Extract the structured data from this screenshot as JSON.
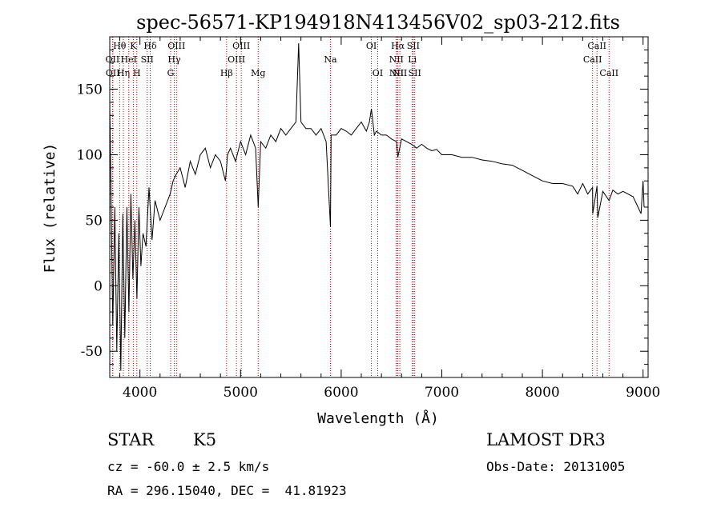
{
  "chart_data": {
    "type": "line",
    "title": "spec-56571-KP194918N413456V02_sp03-212.fits",
    "xlabel": "Wavelength (Å)",
    "ylabel": "Flux (relative)",
    "xlim": [
      3700,
      9050
    ],
    "ylim": [
      -70,
      190
    ],
    "xticks": [
      4000,
      5000,
      6000,
      7000,
      8000,
      9000
    ],
    "yticks": [
      -50,
      0,
      50,
      100,
      150
    ],
    "grid": false,
    "series": [
      {
        "name": "spectrum",
        "x": [
          3700,
          3730,
          3750,
          3770,
          3790,
          3810,
          3830,
          3850,
          3870,
          3890,
          3910,
          3930,
          3950,
          3970,
          3990,
          4010,
          4030,
          4060,
          4090,
          4120,
          4150,
          4200,
          4250,
          4300,
          4330,
          4360,
          4400,
          4450,
          4500,
          4550,
          4600,
          4650,
          4700,
          4750,
          4800,
          4850,
          4861,
          4870,
          4900,
          4950,
          5000,
          5050,
          5100,
          5150,
          5175,
          5200,
          5250,
          5300,
          5350,
          5400,
          5450,
          5500,
          5550,
          5577,
          5600,
          5650,
          5700,
          5750,
          5800,
          5850,
          5893,
          5900,
          5950,
          6000,
          6050,
          6100,
          6150,
          6200,
          6250,
          6280,
          6300,
          6330,
          6350,
          6400,
          6450,
          6500,
          6550,
          6563,
          6600,
          6650,
          6700,
          6750,
          6800,
          6850,
          6900,
          6950,
          7000,
          7100,
          7200,
          7300,
          7400,
          7500,
          7600,
          7700,
          7800,
          7900,
          8000,
          8100,
          8200,
          8300,
          8350,
          8400,
          8450,
          8498,
          8500,
          8542,
          8550,
          8600,
          8662,
          8700,
          8750,
          8800,
          8850,
          8900,
          8950,
          8980,
          9000,
          9010
        ],
        "values": [
          140,
          -30,
          60,
          -50,
          40,
          -65,
          55,
          -40,
          60,
          -20,
          70,
          5,
          50,
          -10,
          60,
          15,
          40,
          30,
          75,
          35,
          65,
          50,
          60,
          70,
          80,
          85,
          90,
          75,
          95,
          85,
          100,
          105,
          90,
          100,
          95,
          80,
          90,
          100,
          105,
          95,
          110,
          100,
          115,
          105,
          60,
          110,
          105,
          115,
          110,
          120,
          115,
          120,
          125,
          185,
          125,
          120,
          120,
          115,
          120,
          110,
          45,
          115,
          115,
          120,
          118,
          115,
          120,
          125,
          118,
          125,
          135,
          115,
          118,
          115,
          115,
          112,
          110,
          98,
          112,
          110,
          108,
          105,
          108,
          105,
          103,
          104,
          100,
          100,
          98,
          98,
          96,
          95,
          93,
          92,
          88,
          84,
          80,
          78,
          78,
          76,
          70,
          78,
          70,
          75,
          55,
          76,
          52,
          72,
          65,
          73,
          70,
          72,
          70,
          68,
          60,
          55,
          80,
          60
        ]
      }
    ],
    "lines": [
      {
        "name": "OII",
        "wavelength": 3727,
        "row": 2
      },
      {
        "name": "OII",
        "wavelength": 3730,
        "row": 3
      },
      {
        "name": "Hθ",
        "wavelength": 3798,
        "row": 1
      },
      {
        "name": "Hη",
        "wavelength": 3835,
        "row": 3
      },
      {
        "name": "HeI",
        "wavelength": 3889,
        "row": 2
      },
      {
        "name": "K",
        "wavelength": 3934,
        "row": 1
      },
      {
        "name": "H",
        "wavelength": 3969,
        "row": 3
      },
      {
        "name": "SII",
        "wavelength": 4072,
        "row": 2
      },
      {
        "name": "Hδ",
        "wavelength": 4102,
        "row": 1
      },
      {
        "name": "G",
        "wavelength": 4305,
        "row": 3
      },
      {
        "name": "Hγ",
        "wavelength": 4341,
        "row": 2
      },
      {
        "name": "OIII",
        "wavelength": 4363,
        "row": 1
      },
      {
        "name": "Hβ",
        "wavelength": 4861,
        "row": 3
      },
      {
        "name": "OIII",
        "wavelength": 4959,
        "row": 2
      },
      {
        "name": "OIII",
        "wavelength": 5007,
        "row": 1
      },
      {
        "name": "Mg",
        "wavelength": 5175,
        "row": 3
      },
      {
        "name": "Na",
        "wavelength": 5893,
        "row": 2
      },
      {
        "name": "OI",
        "wavelength": 6300,
        "row": 1
      },
      {
        "name": "OI",
        "wavelength": 6363,
        "row": 3
      },
      {
        "name": "NII",
        "wavelength": 6548,
        "row": 2
      },
      {
        "name": "NII",
        "wavelength": 6550,
        "row": 3
      },
      {
        "name": "Hα",
        "wavelength": 6563,
        "row": 1
      },
      {
        "name": "NII",
        "wavelength": 6583,
        "row": 3
      },
      {
        "name": "Li",
        "wavelength": 6707,
        "row": 2
      },
      {
        "name": "SII",
        "wavelength": 6716,
        "row": 1
      },
      {
        "name": "SII",
        "wavelength": 6731,
        "row": 3
      },
      {
        "name": "CaII",
        "wavelength": 8498,
        "row": 2
      },
      {
        "name": "CaII",
        "wavelength": 8542,
        "row": 1
      },
      {
        "name": "CaII",
        "wavelength": 8662,
        "row": 3
      }
    ],
    "line_color": "#aa0000"
  },
  "info": {
    "object_class": "STAR",
    "subclass": "K5",
    "redshift": "cz = -60.0 ± 2.5 km/s",
    "coordinates": "RA = 296.15040, DEC =  41.81923",
    "survey": "LAMOST DR3",
    "obs_date": "Obs-Date: 20131005"
  }
}
